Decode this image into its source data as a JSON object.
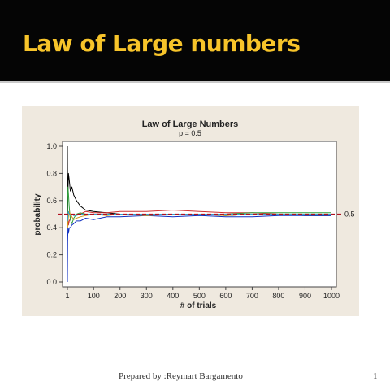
{
  "slide": {
    "title": "Law of Large numbers",
    "title_color": "#f7c42a",
    "header_color": "#050505",
    "footer": "Prepared by :Reymart Bargamento",
    "page_number": "1"
  },
  "chart_data": {
    "type": "line",
    "title": "Law of Large Numbers",
    "subtitle": "p = 0.5",
    "xlabel": "# of trials",
    "ylabel": "probability",
    "xlim": [
      1,
      1000
    ],
    "ylim": [
      0,
      1
    ],
    "x_ticks": [
      "1",
      "100",
      "200",
      "300",
      "400",
      "500",
      "600",
      "700",
      "800",
      "900",
      "1000"
    ],
    "x_tick_values": [
      1,
      100,
      200,
      300,
      400,
      500,
      600,
      700,
      800,
      900,
      1000
    ],
    "y_ticks": [
      "0.0",
      "0.2",
      "0.4",
      "0.6",
      "0.8",
      "1.0"
    ],
    "y_tick_values": [
      0,
      0.2,
      0.4,
      0.6,
      0.8,
      1.0
    ],
    "reference_line": {
      "y": 0.5,
      "label": "0.5",
      "color": "#b01020"
    },
    "background": "#efe9df",
    "grid": false,
    "x": [
      1,
      2,
      3,
      5,
      8,
      12,
      18,
      25,
      35,
      50,
      70,
      100,
      150,
      200,
      300,
      400,
      500,
      600,
      700,
      800,
      900,
      1000
    ],
    "series": [
      {
        "color": "#000000",
        "values": [
          1.0,
          0.5,
          0.67,
          0.8,
          0.75,
          0.67,
          0.7,
          0.64,
          0.6,
          0.56,
          0.53,
          0.52,
          0.51,
          0.5,
          0.5,
          0.5,
          0.5,
          0.49,
          0.5,
          0.5,
          0.49,
          0.49
        ]
      },
      {
        "color": "#1030c0",
        "values": [
          0.0,
          0.3,
          0.4,
          0.36,
          0.4,
          0.4,
          0.42,
          0.43,
          0.45,
          0.45,
          0.47,
          0.46,
          0.48,
          0.48,
          0.49,
          0.48,
          0.49,
          0.48,
          0.48,
          0.49,
          0.49,
          0.49
        ]
      },
      {
        "color": "#d03030",
        "values": [
          0.5,
          0.5,
          0.48,
          0.42,
          0.45,
          0.47,
          0.5,
          0.49,
          0.5,
          0.5,
          0.52,
          0.51,
          0.51,
          0.52,
          0.52,
          0.53,
          0.52,
          0.51,
          0.51,
          0.5,
          0.5,
          0.5
        ]
      },
      {
        "color": "#2e9e3a",
        "values": [
          0.5,
          0.6,
          0.7,
          0.65,
          0.55,
          0.46,
          0.43,
          0.47,
          0.5,
          0.51,
          0.5,
          0.5,
          0.5,
          0.5,
          0.5,
          0.5,
          0.5,
          0.5,
          0.51,
          0.51,
          0.51,
          0.51
        ]
      },
      {
        "color": "#d09a1a",
        "values": [
          0.5,
          0.4,
          0.45,
          0.48,
          0.52,
          0.5,
          0.48,
          0.46,
          0.47,
          0.48,
          0.49,
          0.5,
          0.49,
          0.5,
          0.49,
          0.5,
          0.5,
          0.49,
          0.5,
          0.5,
          0.5,
          0.5
        ]
      },
      {
        "color": "#3aa0c8",
        "values": [
          0.5,
          0.45,
          0.5,
          0.52,
          0.5,
          0.49,
          0.5,
          0.49,
          0.49,
          0.5,
          0.5,
          0.5,
          0.5,
          0.5,
          0.5,
          0.5,
          0.5,
          0.5,
          0.5,
          0.5,
          0.5,
          0.5
        ]
      }
    ]
  }
}
